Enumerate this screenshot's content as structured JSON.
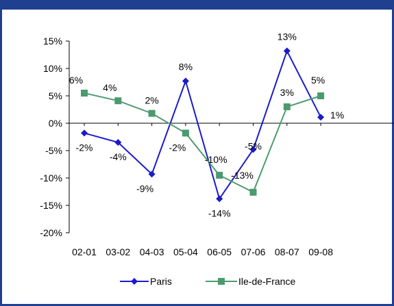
{
  "chart_data": {
    "type": "line",
    "title": "",
    "xlabel": "",
    "ylabel": "",
    "categories": [
      "02-01",
      "03-02",
      "04-03",
      "05-04",
      "06-05",
      "07-06",
      "08-07",
      "09-08"
    ],
    "ylim": [
      -0.2,
      0.15
    ],
    "yticks": [
      0.15,
      0.1,
      0.05,
      0,
      -0.05,
      -0.1,
      -0.15,
      -0.2
    ],
    "ytick_labels": [
      "15%",
      "10%",
      "5%",
      "0%",
      "-5%",
      "-10%",
      "-15%",
      "-20%"
    ],
    "grid": false,
    "legend_position": "bottom",
    "series": [
      {
        "name": "Paris",
        "color": "#1a1acc",
        "marker": "diamond",
        "values": [
          -0.018,
          -0.035,
          -0.093,
          0.077,
          -0.138,
          -0.048,
          0.132,
          0.011
        ],
        "labels": [
          "-2%",
          "-4%",
          "-9%",
          "8%",
          "-14%",
          "-5%",
          "13%",
          "1%"
        ]
      },
      {
        "name": "Ile-de-France",
        "color": "#4c9a6f",
        "marker": "square",
        "values": [
          0.055,
          0.041,
          0.018,
          -0.018,
          -0.095,
          -0.126,
          0.03,
          0.05
        ],
        "labels": [
          "6%",
          "4%",
          "2%",
          "-2%",
          "-10%",
          "-13%",
          "3%",
          "5%"
        ]
      }
    ]
  }
}
